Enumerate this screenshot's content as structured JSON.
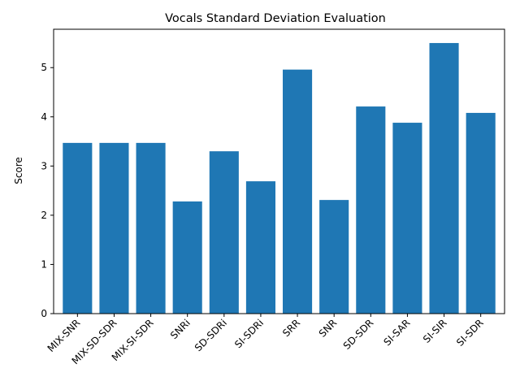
{
  "chart_data": {
    "type": "bar",
    "title": "Vocals Standard Deviation Evaluation",
    "xlabel": "",
    "ylabel": "Score",
    "categories": [
      "MIX-SNR",
      "MIX-SD-SDR",
      "MIX-SI-SDR",
      "SNRi",
      "SD-SDRi",
      "SI-SDRi",
      "SRR",
      "SNR",
      "SD-SDR",
      "SI-SAR",
      "SI-SIR",
      "SI-SDR"
    ],
    "values": [
      3.47,
      3.47,
      3.47,
      2.28,
      3.3,
      2.69,
      4.96,
      2.31,
      4.21,
      3.88,
      5.5,
      4.08
    ],
    "ylim": [
      0,
      5.78
    ],
    "yticks": [
      "0",
      "1",
      "2",
      "3",
      "4",
      "5"
    ],
    "bar_color": "#1f77b4",
    "grid": false,
    "legend": "none"
  }
}
